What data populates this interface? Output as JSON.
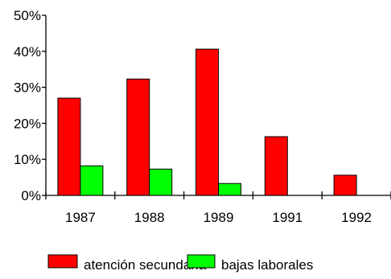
{
  "chart_data": {
    "type": "bar",
    "categories": [
      "1987",
      "1988",
      "1989",
      "1991",
      "1992"
    ],
    "series": [
      {
        "name": "atención secundaria",
        "color": "#ff0000",
        "values": [
          27,
          32.3,
          40.6,
          16.3,
          5.6
        ]
      },
      {
        "name": "bajas laborales",
        "color": "#00ff00",
        "values": [
          8.2,
          7.3,
          3.3,
          0,
          0
        ]
      }
    ],
    "ylim": [
      0,
      50
    ],
    "yticks": [
      "0%",
      "10%",
      "20%",
      "30%",
      "40%",
      "50%"
    ],
    "grid": false,
    "legend": "bottom"
  }
}
